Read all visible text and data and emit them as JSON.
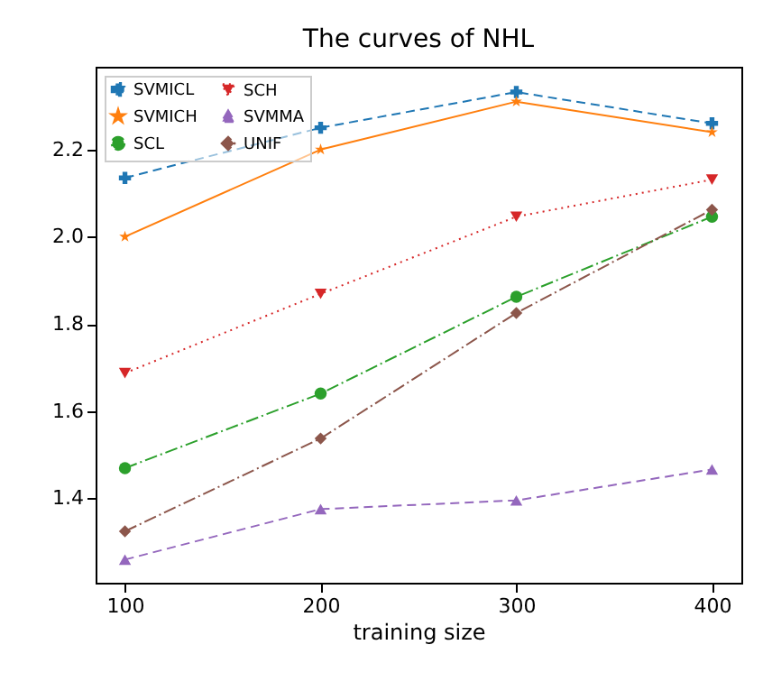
{
  "chart_data": {
    "type": "line",
    "title": "The curves of NHL",
    "xlabel": "training size",
    "x": [
      100,
      200,
      300,
      400
    ],
    "xlim": [
      85,
      415
    ],
    "xticks": [
      100,
      200,
      300,
      400
    ],
    "ylim": [
      1.206,
      2.39
    ],
    "yticks": [
      1.4,
      1.6,
      1.8,
      {
        "value": 2,
        "label": "2.0"
      },
      2.2
    ],
    "grid": false,
    "legend": "top left",
    "series": [
      {
        "name": "SVMICL",
        "color": "#1f77b4",
        "marker": "cross",
        "line_style": "dashed",
        "values": [
          2.135,
          2.25,
          2.332,
          2.26
        ]
      },
      {
        "name": "SVMICH",
        "color": "#ff7f0e",
        "marker": "star",
        "line_style": "solid",
        "values": [
          2.0,
          2.2,
          2.31,
          2.24
        ]
      },
      {
        "name": "SCL",
        "color": "#2ca02c",
        "marker": "circle",
        "line_style": "dashdot",
        "values": [
          1.469,
          1.64,
          1.862,
          2.046
        ]
      },
      {
        "name": "SCH",
        "color": "#d62728",
        "marker": "triangle-down",
        "line_style": "dotted",
        "values": [
          1.687,
          1.869,
          2.046,
          2.131
        ]
      },
      {
        "name": "SVMMA",
        "color": "#9467bd",
        "marker": "triangle",
        "line_style": "dashed",
        "values": [
          1.259,
          1.375,
          1.395,
          1.466
        ]
      },
      {
        "name": "UNIF",
        "color": "#8c564b",
        "marker": "diamond",
        "line_style": "dashdot",
        "values": [
          1.324,
          1.537,
          1.825,
          2.062
        ]
      }
    ]
  }
}
